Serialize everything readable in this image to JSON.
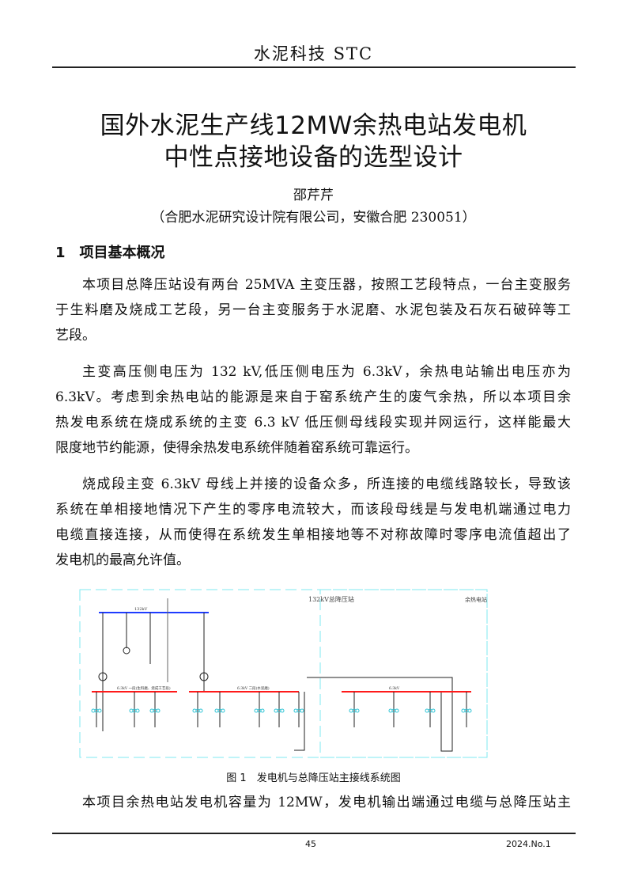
{
  "header": {
    "journal": "水泥科技 STC"
  },
  "article": {
    "title_lines": [
      "国外水泥生产线12MW余热电站发电机",
      "中性点接地设备的选型设计"
    ],
    "author": "邵芹芹",
    "affiliation": "（合肥水泥研究设计院有限公司，安徽合肥 230051）",
    "section_heading": "1　项目基本概况",
    "paragraphs": [
      [
        "本项目总降压站设有两台 25MVA 主变压器，按照工艺段特点，一台主变服务",
        "于生料磨及烧成工艺段，另一台主变服务于水泥磨、水泥包装及石灰石破碎等工",
        "艺段。"
      ],
      [
        "主变高压侧电压为 132 kV,低压侧电压为 6.3kV，余热电站输出电压亦为",
        "6.3kV。考虑到余热电站的能源是来自于窑系统产生的废气余热，所以本项目余",
        "热发电系统在烧成系统的主变 6.3 kV 低压侧母线段实现并网运行，这样能最大",
        "限度地节约能源，使得余热发电系统伴随着窑系统可靠运行。"
      ],
      [
        "烧成段主变 6.3kV 母线上并接的设备众多，所连接的电缆线路较长，导致该",
        "系统在单相接地情况下产生的零序电流较大，而该段母线是与发电机端通过电力",
        "电缆直接连接，从而使得在系统发生单相接地等不对称故障时零序电流值超出了",
        "发电机的最高允许值。"
      ],
      [
        "本项目余热电站发电机容量为 12MW，发电机输出端通过电缆与总降压站主"
      ]
    ],
    "figure": {
      "caption": "图 1　发电机与总降压站主接线系统图",
      "labels": {
        "substation": "132kV总降压站",
        "plant": "余热电站",
        "hv_bus": "132kV",
        "bus1": "6.3kV 一段(生料磨、烧成工艺段)",
        "bus2": "6.3kV 二段(水泥磨)",
        "bus3": "6.3kV"
      },
      "colors": {
        "hv_bus": "#1f3cff",
        "lv_bus": "#ff1a1a",
        "frame": "#7fe8f0",
        "ct": "#2ec4d6"
      }
    }
  },
  "footer": {
    "page": "45",
    "issue": "2024.No.1"
  }
}
